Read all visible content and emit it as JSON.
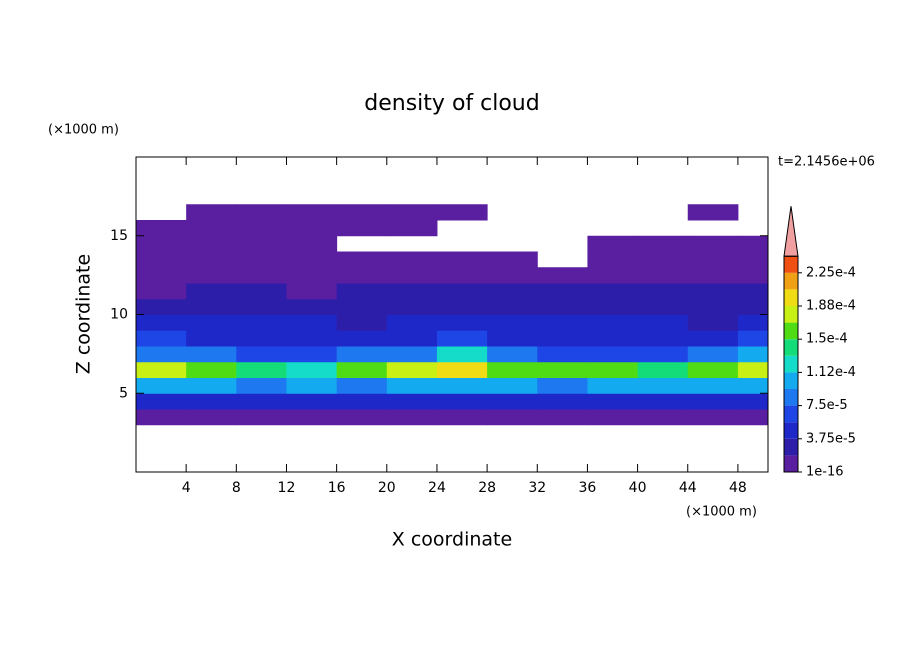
{
  "chart_data": {
    "type": "contour",
    "title": "density of cloud",
    "xlabel": "X coordinate",
    "ylabel": "Z coordinate",
    "xunit": "(×1000 m)",
    "yunit": "(×1000 m)",
    "annotation": "t=2.1456e+06",
    "xlim": [
      0,
      50.4
    ],
    "ylim": [
      0,
      20
    ],
    "xticks": [
      4,
      8,
      12,
      16,
      20,
      24,
      28,
      32,
      36,
      40,
      44,
      48
    ],
    "yticks": [
      5,
      10,
      15
    ],
    "x": [
      2,
      6,
      10,
      14,
      18,
      22,
      26,
      30,
      34,
      38,
      42,
      46,
      50
    ],
    "z": [
      3.5,
      4.5,
      5.5,
      6.5,
      7.5,
      8.5,
      9.5,
      10.5,
      11.5,
      12.5,
      13.5,
      14.5,
      15.5,
      16.5
    ],
    "values": [
      [
        1e-05,
        1e-05,
        1e-05,
        1e-05,
        1e-05,
        1e-05,
        1e-05,
        1e-05,
        1e-05,
        1e-05,
        1e-05,
        1e-05,
        1e-05
      ],
      [
        4e-05,
        5e-05,
        4e-05,
        5e-05,
        4e-05,
        5e-05,
        5e-05,
        4e-05,
        5e-05,
        4e-05,
        5e-05,
        4e-05,
        5e-05
      ],
      [
        0.00011,
        0.0001,
        9e-05,
        0.0001,
        9e-05,
        0.00011,
        0.00011,
        0.0001,
        9e-05,
        0.0001,
        0.00011,
        0.0001,
        0.00011
      ],
      [
        0.00017,
        0.00016,
        0.00014,
        0.00013,
        0.00015,
        0.00017,
        0.00019,
        0.00015,
        0.00015,
        0.00016,
        0.00014,
        0.00016,
        0.00017
      ],
      [
        9e-05,
        8e-05,
        7e-05,
        7e-05,
        8e-05,
        8e-05,
        0.00013,
        8e-05,
        6e-05,
        7e-05,
        7e-05,
        8e-05,
        0.00011
      ],
      [
        6e-05,
        5e-05,
        5e-05,
        5e-05,
        5e-05,
        5e-05,
        6e-05,
        5e-05,
        4e-05,
        4e-05,
        5e-05,
        4e-05,
        6e-05
      ],
      [
        4e-05,
        4e-05,
        4e-05,
        4e-05,
        3e-05,
        4e-05,
        4e-05,
        5e-05,
        4e-05,
        4e-05,
        4e-05,
        3e-05,
        4e-05
      ],
      [
        3e-05,
        3e-05,
        3e-05,
        2e-05,
        2e-05,
        3e-05,
        3e-05,
        3e-05,
        3e-05,
        3e-05,
        3e-05,
        3e-05,
        3e-05
      ],
      [
        1e-05,
        2e-05,
        2e-05,
        1e-05,
        2e-05,
        2e-05,
        2e-05,
        2e-05,
        2e-05,
        2e-05,
        2e-05,
        2e-05,
        2e-05
      ],
      [
        1e-05,
        1e-05,
        1e-05,
        1e-05,
        1e-05,
        1e-05,
        1e-05,
        1e-05,
        1e-05,
        1e-05,
        1e-05,
        1e-05,
        1e-05
      ],
      [
        1e-05,
        1e-05,
        1e-05,
        1e-05,
        1e-05,
        1e-05,
        1e-05,
        1e-05,
        null,
        1e-05,
        1e-05,
        1e-05,
        1e-05
      ],
      [
        1e-05,
        1e-05,
        1e-05,
        1e-05,
        null,
        null,
        null,
        null,
        null,
        1e-05,
        1e-05,
        1e-05,
        1e-05
      ],
      [
        1e-05,
        1e-05,
        1e-05,
        1e-05,
        1e-05,
        1e-05,
        null,
        null,
        null,
        null,
        null,
        null,
        null
      ],
      [
        null,
        1e-05,
        1e-05,
        1e-05,
        1e-05,
        1e-05,
        1e-05,
        null,
        null,
        null,
        null,
        1e-05,
        null
      ]
    ],
    "levels": [
      1e-16,
      1.875e-05,
      3.75e-05,
      5.625e-05,
      7.5e-05,
      9.375e-05,
      0.0001125,
      0.00013125,
      0.00015,
      0.00016875,
      0.0001875,
      0.00020625,
      0.000225
    ],
    "colors": [
      "#5a1ea0",
      "#2d1eaa",
      "#1e28c8",
      "#1e46e6",
      "#1e78f0",
      "#14aaf0",
      "#14dcc8",
      "#14dc78",
      "#50dc14",
      "#c8f014",
      "#f0dc14",
      "#f0a014",
      "#f05014"
    ],
    "over_color": "#f0a0a0",
    "colorbar_ticks": [
      {
        "value": 1e-16,
        "label": "1e-16"
      },
      {
        "value": 3.75e-05,
        "label": "3.75e-5"
      },
      {
        "value": 7.5e-05,
        "label": "7.5e-5"
      },
      {
        "value": 0.0001125,
        "label": "1.12e-4"
      },
      {
        "value": 0.00015,
        "label": "1.5e-4"
      },
      {
        "value": 0.0001875,
        "label": "1.88e-4"
      },
      {
        "value": 0.000225,
        "label": "2.25e-4"
      }
    ]
  }
}
